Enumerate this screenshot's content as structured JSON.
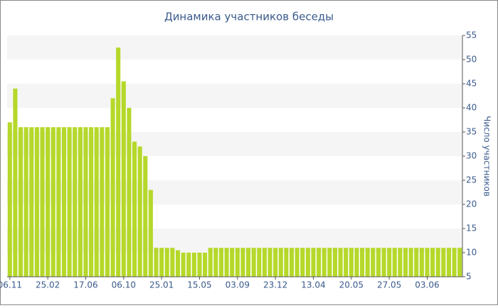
{
  "chart_data": {
    "type": "bar",
    "title": "Динамика участников беседы",
    "y_label": "Число участников",
    "categories": [
      "06.11",
      null,
      null,
      null,
      null,
      null,
      null,
      "25.02",
      null,
      null,
      null,
      null,
      null,
      null,
      "17.06",
      null,
      null,
      null,
      null,
      null,
      null,
      "06.10",
      null,
      null,
      null,
      null,
      null,
      null,
      "25.01",
      null,
      null,
      null,
      null,
      null,
      null,
      "15.05",
      null,
      null,
      null,
      null,
      null,
      null,
      "03.09",
      null,
      null,
      null,
      null,
      null,
      null,
      "23.12",
      null,
      null,
      null,
      null,
      null,
      null,
      "13.04",
      null,
      null,
      null,
      null,
      null,
      null,
      "20.05",
      null,
      null,
      null,
      null,
      null,
      null,
      "27.05",
      null,
      null,
      null,
      null,
      null,
      null,
      "03.06",
      null,
      null,
      null,
      null,
      null,
      null
    ],
    "values": [
      37,
      44,
      36,
      36,
      36,
      36,
      36,
      36,
      36,
      36,
      36,
      36,
      36,
      36,
      36,
      36,
      36,
      36,
      36,
      42,
      52.5,
      45.5,
      40,
      33,
      32,
      30,
      23,
      11,
      11,
      11,
      11,
      10.5,
      10,
      10,
      10,
      10,
      10,
      11,
      11,
      11,
      11,
      11,
      11,
      11,
      11,
      11,
      11,
      11,
      11,
      11,
      11,
      11,
      11,
      11,
      11,
      11,
      11,
      11,
      11,
      11,
      11,
      11,
      11,
      11,
      11,
      11,
      11,
      11,
      11,
      11,
      11,
      11,
      11,
      11,
      11,
      11,
      11,
      11,
      11,
      11,
      11,
      11,
      11,
      11
    ],
    "color": "#b5d82a",
    "ylim": [
      5,
      55
    ],
    "yticks": [
      5,
      10,
      15,
      20,
      25,
      30,
      35,
      40,
      45,
      50,
      55
    ],
    "grid": "bands"
  }
}
